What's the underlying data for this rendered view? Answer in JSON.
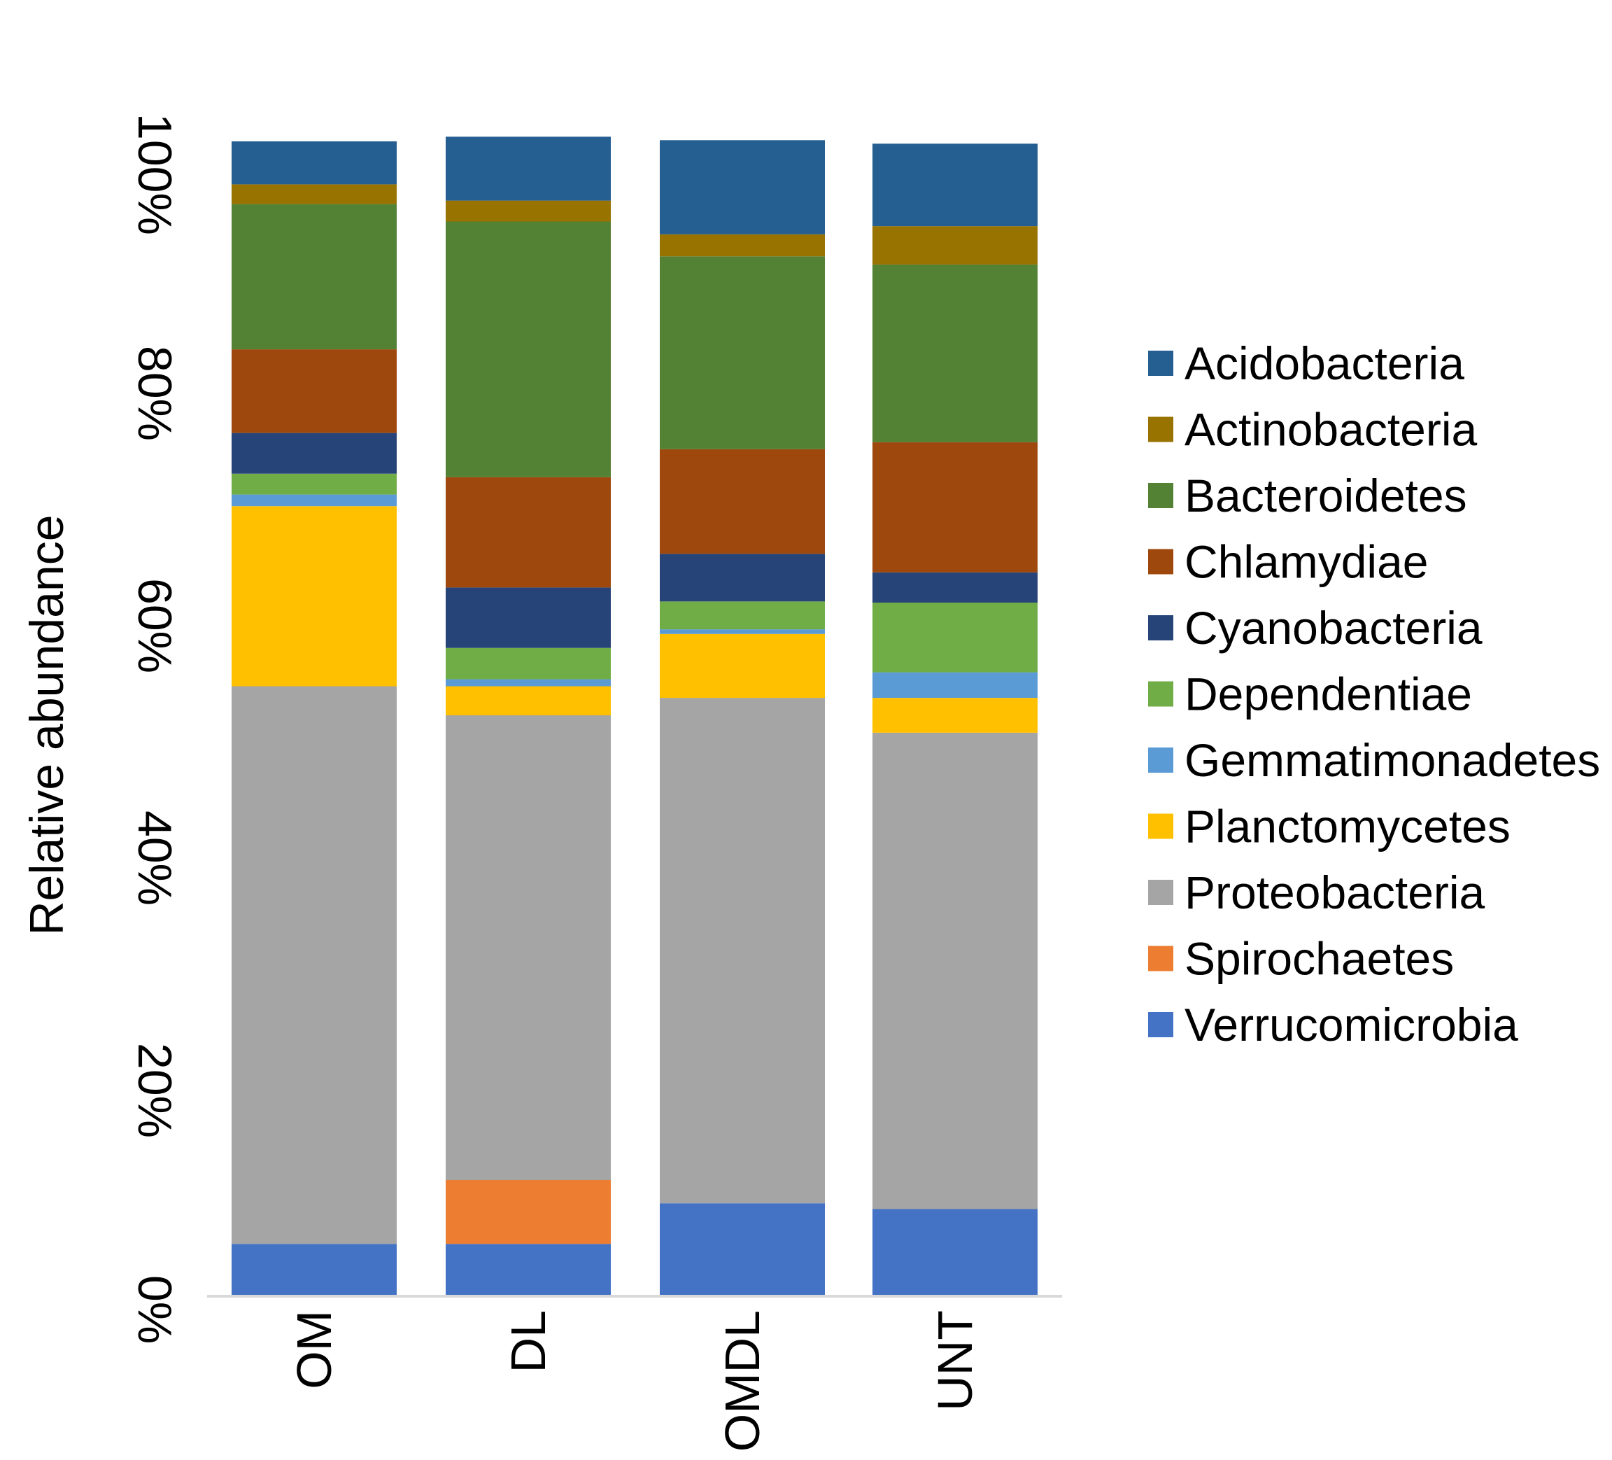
{
  "chart_data": {
    "type": "bar",
    "stacked": true,
    "normalized": true,
    "title": "",
    "xlabel": "",
    "ylabel": "Relative abundance",
    "ylim": [
      0,
      100
    ],
    "yticks": [
      "0%",
      "20%",
      "40%",
      "60%",
      "80%",
      "100%"
    ],
    "categories": [
      "OM",
      "DL",
      "OMDL",
      "UNT"
    ],
    "legend_position": "right",
    "series": [
      {
        "name": "Verrucomicrobia",
        "color": "#4472C4",
        "values": [
          4.5,
          4.5,
          8.0,
          7.5
        ]
      },
      {
        "name": "Spirochaetes",
        "color": "#ED7D31",
        "values": [
          0,
          5.5,
          0,
          0
        ]
      },
      {
        "name": "Proteobacteria",
        "color": "#A5A5A5",
        "values": [
          48.0,
          40.0,
          43.5,
          41.0
        ]
      },
      {
        "name": "Planctomycetes",
        "color": "#FFC000",
        "values": [
          15.5,
          2.5,
          5.5,
          3.0
        ]
      },
      {
        "name": "Gemmatimonadetes",
        "color": "#5B9BD5",
        "values": [
          1.0,
          0.6,
          0.4,
          2.2
        ]
      },
      {
        "name": "Dependentiae",
        "color": "#70AD47",
        "values": [
          1.8,
          2.7,
          2.4,
          6.0
        ]
      },
      {
        "name": "Cyanobacteria",
        "color": "#264478",
        "values": [
          3.5,
          5.2,
          4.1,
          2.6
        ]
      },
      {
        "name": "Chlamydiae",
        "color": "#9E480E",
        "values": [
          7.2,
          9.5,
          9.0,
          11.2
        ]
      },
      {
        "name": "Bacteroidetes",
        "color": "#548235",
        "values": [
          12.5,
          22.0,
          16.6,
          15.3
        ]
      },
      {
        "name": "Actinobacteria",
        "color": "#997300",
        "values": [
          1.7,
          1.8,
          1.9,
          3.3
        ]
      },
      {
        "name": "Acidobacteria",
        "color": "#255E91",
        "values": [
          3.7,
          5.5,
          8.1,
          7.1
        ]
      }
    ],
    "legend_order": [
      "Acidobacteria",
      "Actinobacteria",
      "Bacteroidetes",
      "Chlamydiae",
      "Cyanobacteria",
      "Dependentiae",
      "Gemmatimonadetes",
      "Planctomycetes",
      "Proteobacteria",
      "Spirochaetes",
      "Verrucomicrobia"
    ]
  }
}
